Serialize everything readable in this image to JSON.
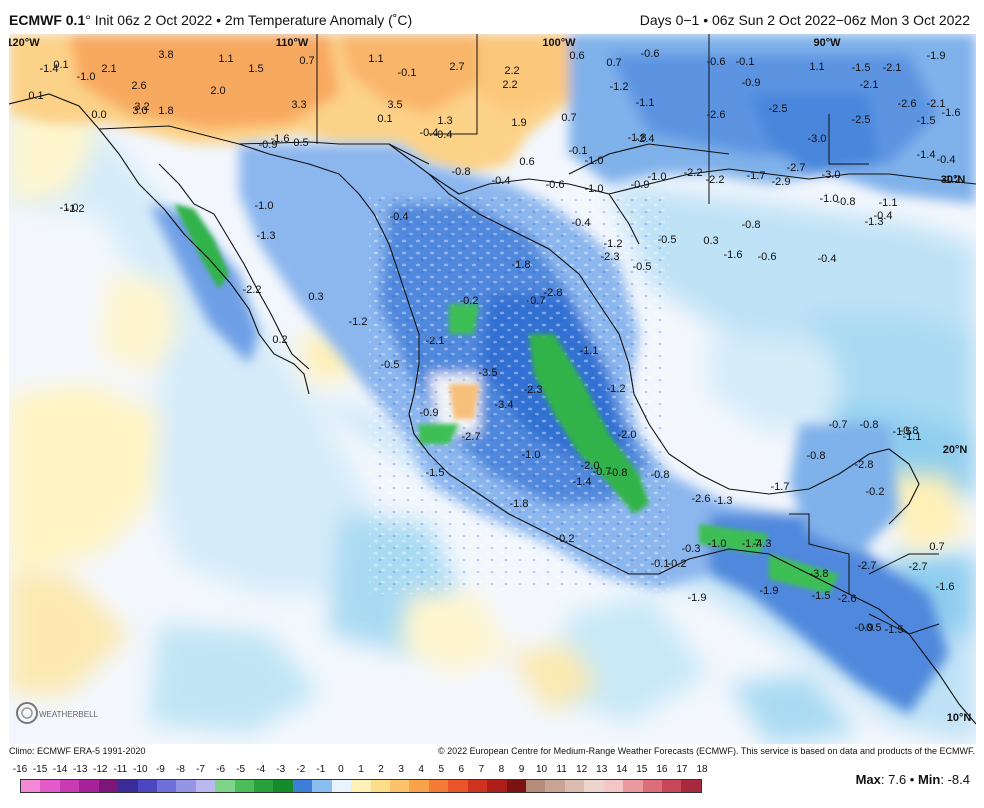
{
  "header": {
    "model": "ECMWF 0.1",
    "degree_symbol": "°",
    "init_text": "Init 06z 2 Oct 2022 • 2m Temperature Anomaly (˚C)",
    "right_text": "Days 0−1 • 06z Sun 2 Oct 2022−06z Mon 3 Oct 2022"
  },
  "map": {
    "lon_labels": [
      "120°W",
      "110°W",
      "100°W",
      "90°W"
    ],
    "lat_labels": [
      "30°N",
      "20°N",
      "10°N"
    ],
    "anomaly_labels": [
      {
        "t": "3.8"
      },
      {
        "t": "1.1"
      },
      {
        "t": "1.5"
      },
      {
        "t": "0.7"
      },
      {
        "t": "1.1"
      },
      {
        "t": "-0.1"
      },
      {
        "t": "2.7"
      },
      {
        "t": "2.2"
      },
      {
        "t": "2.2"
      },
      {
        "t": "0.6"
      },
      {
        "t": "0.7"
      },
      {
        "t": "-0.6"
      },
      {
        "t": "-0.6"
      },
      {
        "t": "-0.1"
      },
      {
        "t": "1.1"
      },
      {
        "t": "-1.5"
      },
      {
        "t": "-2.1"
      },
      {
        "t": "-1.9"
      },
      {
        "t": "0.1"
      },
      {
        "t": "-1.0"
      },
      {
        "t": "2.1"
      },
      {
        "t": "-1.4"
      },
      {
        "t": "2.6"
      },
      {
        "t": "2.0"
      },
      {
        "t": "0.1"
      },
      {
        "t": "3.2"
      },
      {
        "t": "3.0"
      },
      {
        "t": "1.8"
      },
      {
        "t": "0.0"
      },
      {
        "t": "3.3"
      },
      {
        "t": "3.5"
      },
      {
        "t": "0.1"
      },
      {
        "t": "1.3"
      },
      {
        "t": "1.9"
      },
      {
        "t": "0.7"
      },
      {
        "t": "-0.4"
      },
      {
        "t": "-1.6"
      },
      {
        "t": "0.5"
      },
      {
        "t": "-0.9"
      },
      {
        "t": "-0.4"
      },
      {
        "t": "-1.2"
      },
      {
        "t": "-1.1"
      },
      {
        "t": "-0.9"
      },
      {
        "t": "-2.5"
      },
      {
        "t": "-2.1"
      },
      {
        "t": "-2.6"
      },
      {
        "t": "-2.1"
      },
      {
        "t": "-1.6"
      },
      {
        "t": "-1.5"
      },
      {
        "t": "-2.5"
      },
      {
        "t": "-2.6"
      },
      {
        "t": "-3.0"
      },
      {
        "t": "-1.8"
      },
      {
        "t": "-2.4"
      },
      {
        "t": "-0.1"
      },
      {
        "t": "-1.0"
      },
      {
        "t": "-0.8"
      },
      {
        "t": "0.6"
      },
      {
        "t": "-0.4"
      },
      {
        "t": "-0.6"
      },
      {
        "t": "-1.0"
      },
      {
        "t": "-0.9"
      },
      {
        "t": "-1.0"
      },
      {
        "t": "-2.2"
      },
      {
        "t": "-2.2"
      },
      {
        "t": "-1.7"
      },
      {
        "t": "-2.9"
      },
      {
        "t": "-2.7"
      },
      {
        "t": "-3.0"
      },
      {
        "t": "-1.4"
      },
      {
        "t": "-0.4"
      },
      {
        "t": "-1.2"
      },
      {
        "t": "-1.0"
      },
      {
        "t": "-0.8"
      },
      {
        "t": "-0.4"
      },
      {
        "t": "-1.1"
      },
      {
        "t": "-1.3"
      },
      {
        "t": "-1.0"
      },
      {
        "t": "-1.2"
      },
      {
        "t": "-1.0"
      },
      {
        "t": "-1.3"
      },
      {
        "t": "-0.5"
      },
      {
        "t": "-0.4"
      },
      {
        "t": "-0.4"
      },
      {
        "t": "-1.2"
      },
      {
        "t": "-2.3"
      },
      {
        "t": "-0.5"
      },
      {
        "t": "0.3"
      },
      {
        "t": "-0.8"
      },
      {
        "t": "-1.6"
      },
      {
        "t": "-0.6"
      },
      {
        "t": "-0.4"
      },
      {
        "t": "-1.8"
      },
      {
        "t": "-2.8"
      },
      {
        "t": "-0.7"
      },
      {
        "t": "-0.2"
      },
      {
        "t": "0.3"
      },
      {
        "t": "-1.2"
      },
      {
        "t": "-2.2"
      },
      {
        "t": "0.2"
      },
      {
        "t": "-2.1"
      },
      {
        "t": "-0.5"
      },
      {
        "t": "-3.5"
      },
      {
        "t": "-2.3"
      },
      {
        "t": "-1.1"
      },
      {
        "t": "-1.2"
      },
      {
        "t": "-3.4"
      },
      {
        "t": "-0.9"
      },
      {
        "t": "-2.7"
      },
      {
        "t": "-2.0"
      },
      {
        "t": "-1.5"
      },
      {
        "t": "-1.8"
      },
      {
        "t": "-1.0"
      },
      {
        "t": "-2.0"
      },
      {
        "t": "-1.4"
      },
      {
        "t": "-0.7"
      },
      {
        "t": "-0.8"
      },
      {
        "t": "-0.8"
      },
      {
        "t": "-0.8"
      },
      {
        "t": "-1.7"
      },
      {
        "t": "-2.8"
      },
      {
        "t": "-0.2"
      },
      {
        "t": "-2.6"
      },
      {
        "t": "-1.3"
      },
      {
        "t": "-1.5"
      },
      {
        "t": "-0.8"
      },
      {
        "t": "-1.1"
      },
      {
        "t": "-0.8"
      },
      {
        "t": "-0.7"
      },
      {
        "t": "-0.2"
      },
      {
        "t": "-0.1"
      },
      {
        "t": "-0.2"
      },
      {
        "t": "-0.3"
      },
      {
        "t": "-1.0"
      },
      {
        "t": "-1.7"
      },
      {
        "t": "-4.3"
      },
      {
        "t": "-3.8"
      },
      {
        "t": "-1.9"
      },
      {
        "t": "-2.7"
      },
      {
        "t": "-2.7"
      },
      {
        "t": "0.7"
      },
      {
        "t": "-1.6"
      },
      {
        "t": "-1.5"
      },
      {
        "t": "-2.6"
      },
      {
        "t": "-1.9"
      },
      {
        "t": "-0.9"
      },
      {
        "t": "-0.5"
      },
      {
        "t": "-1.5"
      }
    ]
  },
  "footer": {
    "climo": "Climo: ECMWF ERA-5 1991-2020",
    "copyright": "© 2022 European Centre for Medium-Range Weather Forecasts (ECMWF). This service is based on data and products of the ECMWF.",
    "max_label": "Max",
    "max_value": "7.6",
    "min_label": "Min",
    "min_value": "-8.4",
    "logo_text": "WEATHERBELL"
  },
  "scale": {
    "ticks": [
      "-16",
      "-15",
      "-14",
      "-13",
      "-12",
      "-11",
      "-10",
      "-9",
      "-8",
      "-7",
      "-6",
      "-5",
      "-4",
      "-3",
      "-2",
      "-1",
      "0",
      "1",
      "2",
      "3",
      "4",
      "5",
      "6",
      "7",
      "8",
      "9",
      "10",
      "11",
      "12",
      "13",
      "14",
      "15",
      "16",
      "17",
      "18"
    ],
    "colors": [
      "#f28ad8",
      "#e45cc9",
      "#c93bb2",
      "#a6219a",
      "#7c1779",
      "#3b2d99",
      "#4b47c2",
      "#6f6fd9",
      "#9595e6",
      "#b9b8ef",
      "#7fd48c",
      "#4dbd5a",
      "#2aa23b",
      "#148a2c",
      "#3d7fd8",
      "#8cbdf0",
      "#e9f3fb",
      "#fff0b8",
      "#fddc8a",
      "#fcc46a",
      "#f9a24a",
      "#f47b36",
      "#e95528",
      "#d1321f",
      "#ae1e19",
      "#7d1212",
      "#b58c7c",
      "#c9a495",
      "#dbbcb0",
      "#ebd5cc",
      "#f3c6c8",
      "#e99aa0",
      "#dc6e79",
      "#c8465a",
      "#a8293e"
    ]
  }
}
